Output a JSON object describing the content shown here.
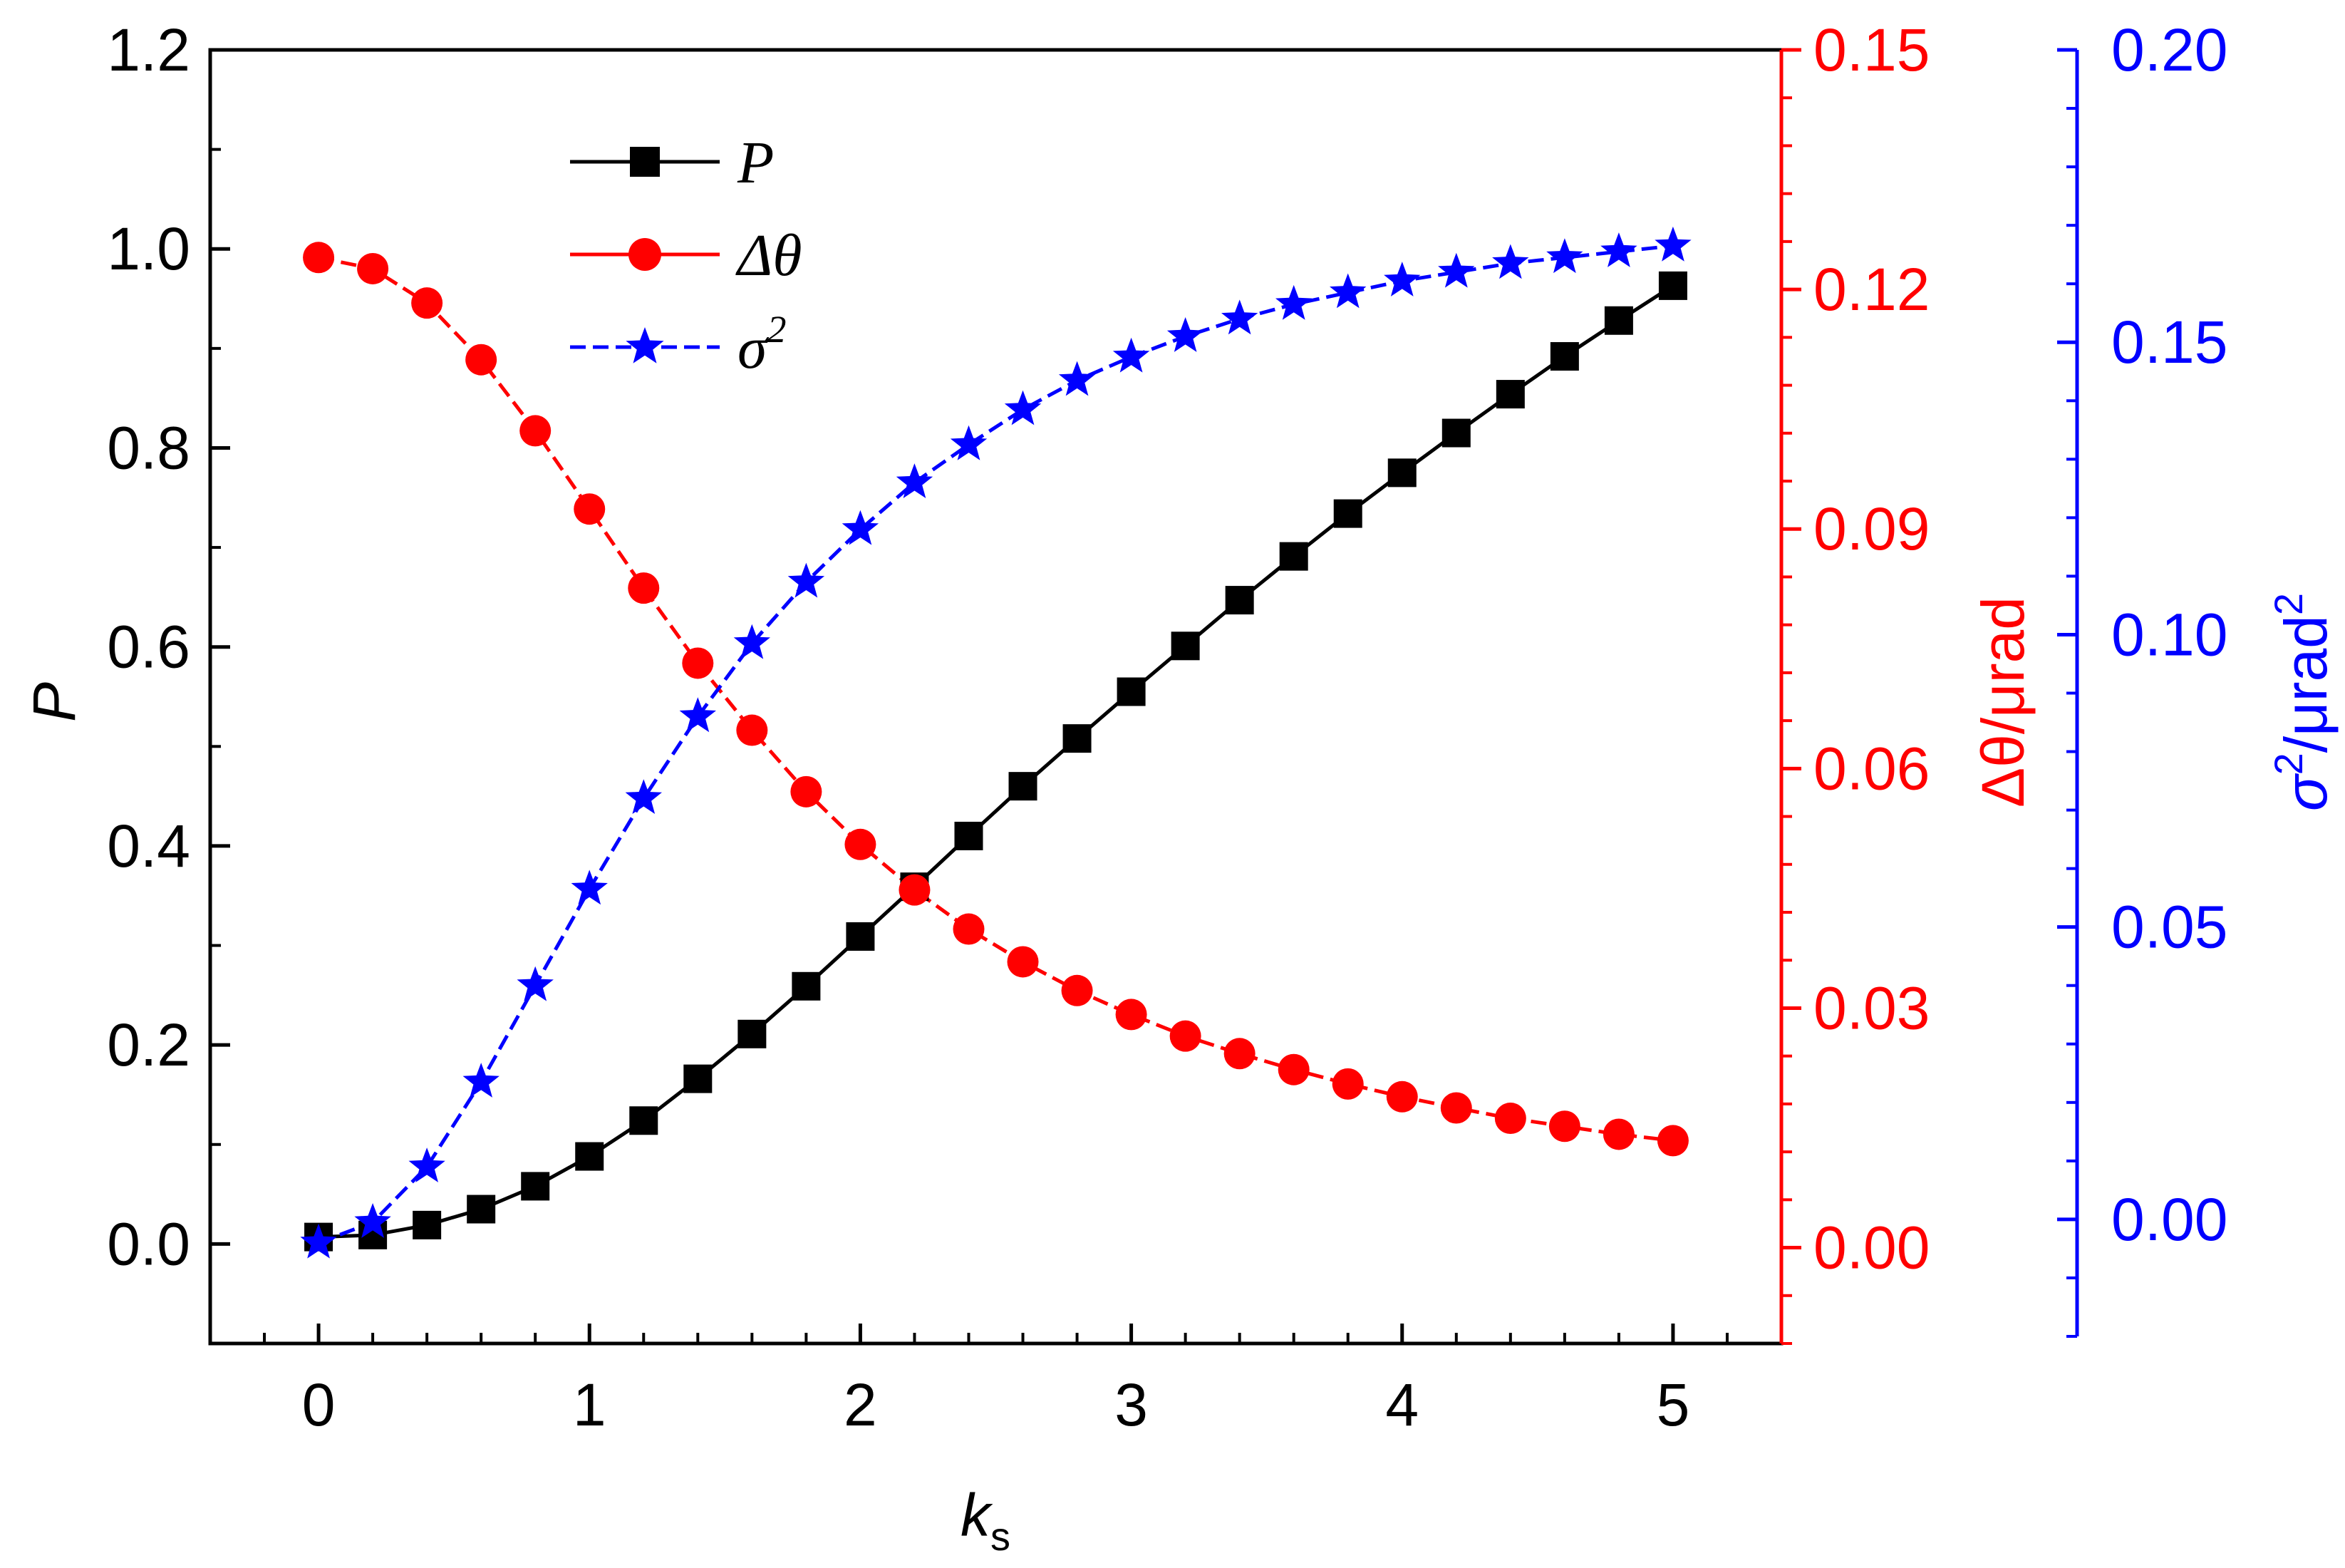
{
  "chart_data": {
    "type": "line",
    "x": [
      0,
      0.2,
      0.4,
      0.6,
      0.8,
      1.0,
      1.2,
      1.4,
      1.6,
      1.8,
      2.0,
      2.2,
      2.4,
      2.6,
      2.8,
      3.0,
      3.2,
      3.4,
      3.6,
      3.8,
      4.0,
      4.2,
      4.4,
      4.6,
      4.8,
      5.0
    ],
    "xlabel_main": "k",
    "xlabel_sub": "s",
    "xlim": [
      -0.4,
      5.4
    ],
    "xticks": [
      "0",
      "1",
      "2",
      "3",
      "4",
      "5"
    ],
    "axes": {
      "left": {
        "title": "P",
        "color": "#000000",
        "ylim": [
          -0.1,
          1.2
        ],
        "ticks": [
          "0.0",
          "0.2",
          "0.4",
          "0.6",
          "0.8",
          "1.0",
          "1.2"
        ]
      },
      "right1": {
        "title_symbol": "Δθ",
        "title_unit": "/μrad",
        "color": "#ff0000",
        "ylim": [
          -0.012,
          0.15
        ],
        "ticks": [
          "0.00",
          "0.03",
          "0.06",
          "0.09",
          "0.12",
          "0.15"
        ]
      },
      "right2": {
        "title_symbol": "σ",
        "title_sup": "2",
        "title_unit": "/μrad",
        "title_unit_sup": "2",
        "color": "#0000ff",
        "ylim": [
          -0.02,
          0.2
        ],
        "ticks": [
          "0.00",
          "0.05",
          "0.10",
          "0.15",
          "0.20"
        ]
      }
    },
    "series": [
      {
        "name": "P",
        "axis": "left",
        "color": "#000000",
        "marker": "square",
        "values": [
          0.007,
          0.009,
          0.019,
          0.035,
          0.058,
          0.088,
          0.124,
          0.166,
          0.211,
          0.259,
          0.309,
          0.359,
          0.41,
          0.46,
          0.508,
          0.555,
          0.601,
          0.647,
          0.691,
          0.734,
          0.775,
          0.815,
          0.854,
          0.892,
          0.928,
          0.963
        ]
      },
      {
        "name": "Δθ",
        "axis": "right1",
        "color": "#ff0000",
        "marker": "circle",
        "values": [
          0.124,
          0.1226,
          0.1183,
          0.1112,
          0.1023,
          0.0925,
          0.0826,
          0.0732,
          0.0648,
          0.0571,
          0.0505,
          0.0448,
          0.0399,
          0.0358,
          0.0322,
          0.0292,
          0.0265,
          0.0243,
          0.0223,
          0.0205,
          0.0189,
          0.0175,
          0.0162,
          0.0152,
          0.0142,
          0.0134
        ]
      },
      {
        "name": "σ²",
        "axis": "right2",
        "color": "#0000ff",
        "marker": "star",
        "values": [
          -0.004,
          -0.0005,
          0.009,
          0.0235,
          0.04,
          0.0565,
          0.072,
          0.086,
          0.0985,
          0.109,
          0.118,
          0.126,
          0.1325,
          0.1385,
          0.1435,
          0.1475,
          0.151,
          0.154,
          0.1565,
          0.1585,
          0.1605,
          0.162,
          0.1635,
          0.1645,
          0.1655,
          0.1665
        ]
      }
    ],
    "legend": {
      "position": "top-left",
      "entries": [
        {
          "series": 0,
          "label": "P"
        },
        {
          "series": 1,
          "label": "Δθ"
        },
        {
          "series": 2,
          "label": "σ",
          "sup": "2"
        }
      ]
    }
  }
}
